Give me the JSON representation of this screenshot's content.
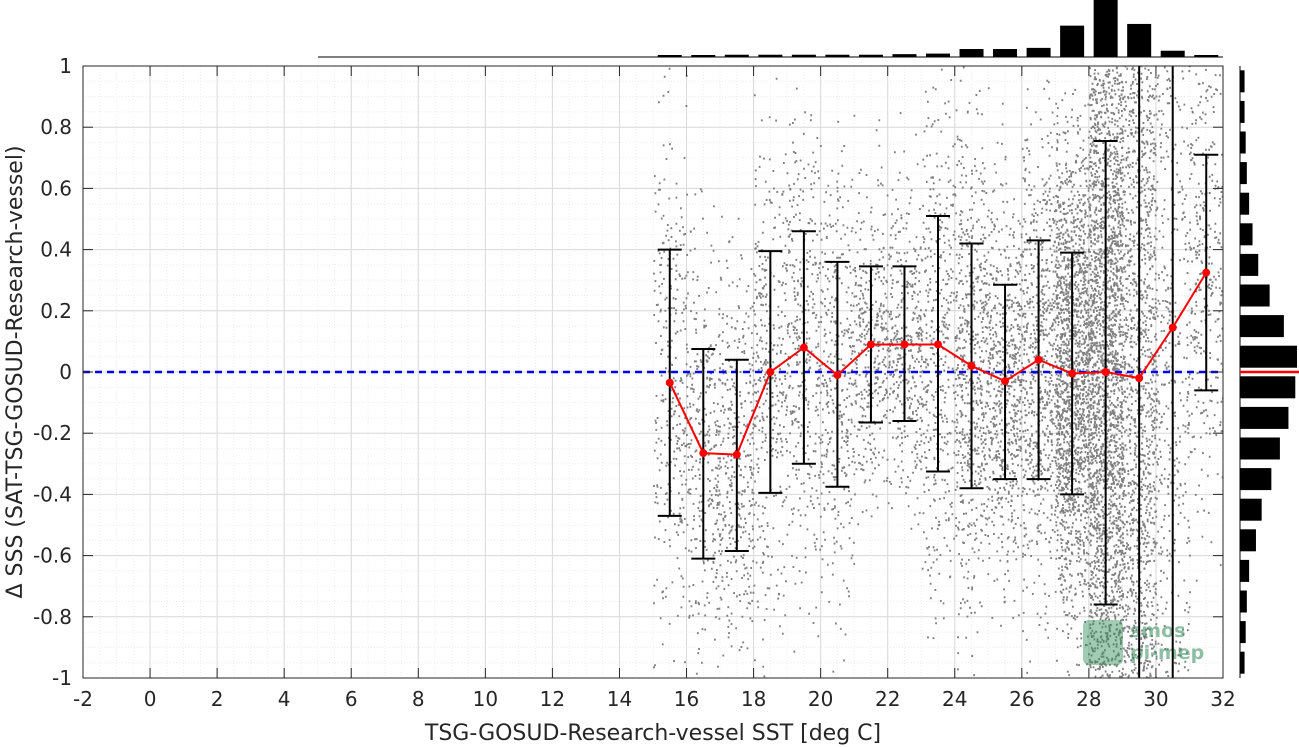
{
  "chart_data": {
    "type": "scatter",
    "xlabel": "TSG-GOSUD-Research-vessel SST [deg C]",
    "ylabel": "Δ SSS (SAT-TSG-GOSUD-Research-vessel)",
    "xlim": [
      -2,
      32
    ],
    "ylim": [
      -1,
      1
    ],
    "x_ticks": [
      "-2",
      "0",
      "2",
      "4",
      "6",
      "8",
      "10",
      "12",
      "14",
      "16",
      "18",
      "20",
      "22",
      "24",
      "26",
      "28",
      "30",
      "32"
    ],
    "y_ticks": [
      "-1",
      "-0.8",
      "-0.6",
      "-0.4",
      "-0.2",
      "0",
      "0.2",
      "0.4",
      "0.6",
      "0.8",
      "1"
    ],
    "grid": true,
    "reference_line": {
      "y": 0,
      "color": "#0000ff",
      "style": "dashed"
    },
    "scatter_color": "#808080",
    "scatter_x_range": [
      15.5,
      32
    ],
    "series": [
      {
        "color": "#ff0000",
        "x": [
          15.5,
          16.5,
          17.5,
          18.5,
          19.5,
          20.5,
          21.5,
          22.5,
          23.5,
          24.5,
          25.5,
          26.5,
          27.5,
          28.5,
          29.5,
          30.5,
          31.5
        ],
        "y": [
          -0.035,
          -0.265,
          -0.27,
          0.0,
          0.08,
          -0.01,
          0.09,
          0.09,
          0.09,
          0.02,
          -0.03,
          0.04,
          -0.005,
          0.0,
          -0.02,
          0.145,
          0.325
        ],
        "error_low": [
          -0.47,
          -0.61,
          -0.585,
          -0.395,
          -0.3,
          -0.375,
          -0.165,
          -0.16,
          -0.325,
          -0.38,
          -0.35,
          -0.35,
          -0.4,
          -0.76,
          -1.0,
          -1.0,
          -0.06
        ],
        "error_high": [
          0.4,
          0.075,
          0.04,
          0.395,
          0.46,
          0.36,
          0.345,
          0.345,
          0.51,
          0.42,
          0.285,
          0.43,
          0.39,
          0.755,
          1.0,
          1.0,
          0.71
        ]
      }
    ],
    "histogram_top": {
      "x_centers": [
        15.5,
        16.5,
        17.5,
        18.5,
        19.5,
        20.5,
        21.5,
        22.5,
        23.5,
        24.5,
        25.5,
        26.5,
        27.5,
        28.5,
        29.5,
        30.5,
        31.5
      ],
      "relative_counts": [
        0.02,
        0.03,
        0.04,
        0.04,
        0.04,
        0.04,
        0.04,
        0.05,
        0.06,
        0.14,
        0.14,
        0.16,
        0.55,
        1.0,
        0.58,
        0.11,
        0.03
      ]
    },
    "histogram_right": {
      "y_centers": [
        0.95,
        0.85,
        0.75,
        0.65,
        0.55,
        0.45,
        0.35,
        0.25,
        0.15,
        0.05,
        -0.05,
        -0.15,
        -0.25,
        -0.35,
        -0.45,
        -0.55,
        -0.65,
        -0.75,
        -0.85,
        -0.95
      ],
      "relative_counts": [
        0.08,
        0.08,
        0.1,
        0.12,
        0.16,
        0.22,
        0.32,
        0.52,
        0.77,
        1.0,
        0.97,
        0.85,
        0.7,
        0.55,
        0.38,
        0.28,
        0.16,
        0.12,
        0.1,
        0.08
      ],
      "marker_line": {
        "y": 0,
        "color": "#ff0000"
      }
    }
  },
  "logo": {
    "line1": "smos",
    "line2": "pi-mep"
  }
}
